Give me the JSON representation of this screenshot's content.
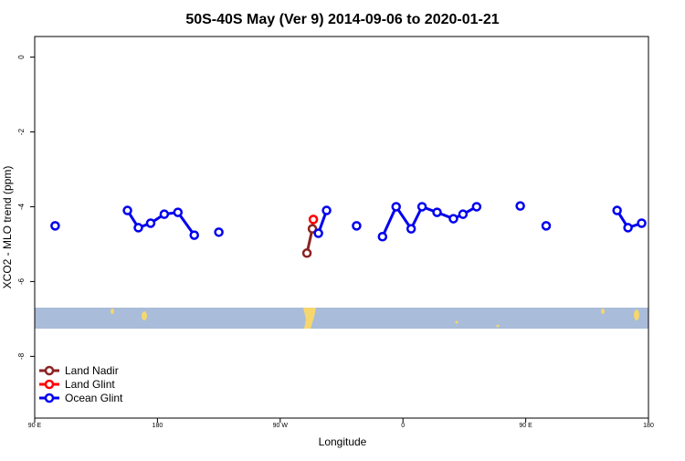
{
  "chart_data": {
    "type": "line",
    "title": "50S-40S May (Ver 9)   2014-09-06 to 2020-01-21",
    "x_label": "Longitude",
    "y_label": "XCO2 - MLO trend (ppm)",
    "xlim": [
      90,
      540
    ],
    "xticks": [
      {
        "value": 90,
        "label": "90 E"
      },
      {
        "value": 180,
        "label": "180"
      },
      {
        "value": 270,
        "label": "90 W"
      },
      {
        "value": 360,
        "label": "0"
      },
      {
        "value": 450,
        "label": "90 E"
      },
      {
        "value": 540,
        "label": "180"
      }
    ],
    "ylim": [
      -9.65,
      0.55
    ],
    "yticks": [
      0,
      -2,
      -4,
      -6,
      -8
    ],
    "legend": "bottom-left",
    "series": [
      {
        "name": "Land Nadir",
        "color": "#8b2323",
        "x": [
          289.6,
          293.6
        ],
        "values": [
          -5.24,
          -4.59
        ]
      },
      {
        "name": "Land Glint",
        "color": "#ff0000",
        "x": [
          294.3
        ],
        "values": [
          -4.34
        ]
      },
      {
        "name": "Ocean Glint",
        "color": "#0000ee",
        "x": [
          105,
          null,
          158,
          166,
          175,
          185,
          195,
          207,
          null,
          225,
          null,
          298,
          304,
          null,
          326,
          null,
          345,
          355,
          366,
          374,
          385,
          397,
          404,
          414,
          null,
          446,
          null,
          465,
          null,
          517,
          525,
          535
        ],
        "values": [
          -4.51,
          null,
          -4.1,
          -4.56,
          -4.44,
          -4.2,
          -4.15,
          -4.76,
          null,
          -4.68,
          null,
          -4.71,
          -4.1,
          null,
          -4.51,
          null,
          -4.8,
          -4.0,
          -4.59,
          -4.0,
          -4.15,
          -4.32,
          -4.2,
          -4.0,
          null,
          -3.98,
          null,
          -4.51,
          null,
          -4.1,
          -4.56,
          -4.44
        ]
      }
    ]
  }
}
